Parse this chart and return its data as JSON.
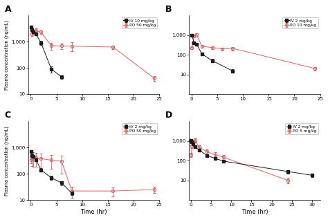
{
  "panels": [
    {
      "label": "A",
      "iv_label": "IV 10 mg/kg",
      "po_label": "PO 50 mg/kg",
      "iv_x": [
        0.083,
        0.25,
        0.5,
        1,
        2,
        4,
        6
      ],
      "iv_y": [
        3500,
        2800,
        2400,
        2000,
        900,
        90,
        45
      ],
      "iv_yerr_lo": [
        400,
        300,
        250,
        200,
        150,
        25,
        8
      ],
      "iv_yerr_hi": [
        400,
        300,
        250,
        200,
        150,
        25,
        8
      ],
      "po_x": [
        0.25,
        0.5,
        1,
        2,
        4,
        6,
        8,
        16,
        24
      ],
      "po_y": [
        2000,
        2400,
        2600,
        2300,
        700,
        680,
        670,
        620,
        40
      ],
      "po_yerr_lo": [
        400,
        400,
        500,
        400,
        200,
        150,
        250,
        100,
        8
      ],
      "po_yerr_hi": [
        400,
        400,
        500,
        400,
        200,
        150,
        250,
        100,
        8
      ],
      "xlim": [
        -0.5,
        25
      ],
      "xticks": [
        0,
        5,
        10,
        15,
        20,
        25
      ],
      "ylim": [
        10,
        10000
      ],
      "yticks": [
        10,
        100,
        1000
      ],
      "yticklabels": [
        "10",
        "100",
        "1,000"
      ]
    },
    {
      "label": "B",
      "iv_label": "IV 2 mg/kg",
      "po_label": "PO 10 mg/kg",
      "iv_x": [
        0.083,
        0.5,
        1,
        2,
        4,
        8
      ],
      "iv_y": [
        1000,
        400,
        350,
        110,
        50,
        15
      ],
      "iv_yerr_lo": [
        80,
        50,
        40,
        20,
        10,
        3
      ],
      "iv_yerr_hi": [
        80,
        50,
        40,
        20,
        10,
        3
      ],
      "po_x": [
        0.083,
        0.25,
        0.5,
        1,
        2,
        4,
        6,
        8,
        24
      ],
      "po_y": [
        220,
        400,
        900,
        1050,
        270,
        230,
        200,
        210,
        20
      ],
      "po_yerr_lo": [
        30,
        60,
        120,
        140,
        50,
        40,
        30,
        40,
        4
      ],
      "po_yerr_hi": [
        30,
        60,
        120,
        140,
        50,
        40,
        30,
        40,
        4
      ],
      "xlim": [
        -0.5,
        25
      ],
      "xticks": [
        0,
        5,
        10,
        15,
        20,
        25
      ],
      "ylim": [
        1,
        10000
      ],
      "yticks": [
        10,
        100,
        1000
      ],
      "yticklabels": [
        "10",
        "100",
        "1,000"
      ]
    },
    {
      "label": "C",
      "iv_label": "IV 2 mg/kg",
      "po_label": "PO 50 mg/kg",
      "iv_x": [
        0.083,
        0.25,
        0.5,
        1,
        2,
        4,
        6,
        8
      ],
      "iv_y": [
        700,
        500,
        450,
        350,
        140,
        70,
        45,
        18
      ],
      "iv_yerr_lo": [
        80,
        60,
        50,
        40,
        20,
        12,
        8,
        3
      ],
      "iv_yerr_hi": [
        80,
        60,
        50,
        40,
        20,
        12,
        8,
        3
      ],
      "po_x": [
        0.083,
        0.25,
        0.5,
        1,
        2,
        4,
        6,
        8,
        16,
        24
      ],
      "po_y": [
        350,
        380,
        430,
        400,
        380,
        330,
        300,
        22,
        22,
        25
      ],
      "po_yerr_lo": [
        100,
        180,
        250,
        220,
        200,
        180,
        200,
        10,
        8,
        6
      ],
      "po_yerr_hi": [
        100,
        180,
        250,
        220,
        200,
        180,
        200,
        10,
        8,
        6
      ],
      "xlim": [
        -0.5,
        25
      ],
      "xticks": [
        0,
        5,
        10,
        15,
        20,
        25
      ],
      "ylim": [
        10,
        10000
      ],
      "yticks": [
        10,
        100,
        1000
      ],
      "yticklabels": [
        "10",
        "100",
        "1,000"
      ]
    },
    {
      "label": "D",
      "iv_label": "IV 2 mg/kg",
      "po_label": "PO 5 mg/kg",
      "iv_x": [
        0.083,
        0.25,
        0.5,
        1,
        2,
        4,
        6,
        8,
        24,
        30
      ],
      "iv_y": [
        1100,
        900,
        700,
        500,
        350,
        180,
        130,
        95,
        28,
        18
      ],
      "iv_yerr_lo": [
        150,
        120,
        100,
        70,
        50,
        30,
        20,
        15,
        6,
        4
      ],
      "iv_yerr_hi": [
        150,
        120,
        100,
        70,
        50,
        30,
        20,
        15,
        6,
        4
      ],
      "po_x": [
        0.083,
        0.25,
        0.5,
        1,
        2,
        4,
        6,
        8,
        24
      ],
      "po_y": [
        200,
        550,
        900,
        1100,
        500,
        280,
        200,
        150,
        10
      ],
      "po_yerr_lo": [
        50,
        130,
        200,
        280,
        120,
        80,
        60,
        40,
        3
      ],
      "po_yerr_hi": [
        50,
        130,
        200,
        280,
        120,
        80,
        60,
        40,
        3
      ],
      "xlim": [
        -0.5,
        32
      ],
      "xticks": [
        0,
        5,
        10,
        15,
        20,
        25,
        30
      ],
      "ylim": [
        1,
        10000
      ],
      "yticks": [
        10,
        100,
        1000
      ],
      "yticklabels": [
        "10",
        "100",
        "1,000"
      ]
    }
  ],
  "iv_color": "#1a1a1a",
  "po_color": "#e06060",
  "bg_color": "#ffffff",
  "ylabel": "Plasma concentration (ng/mL)",
  "xlabel": "Time (hr)"
}
